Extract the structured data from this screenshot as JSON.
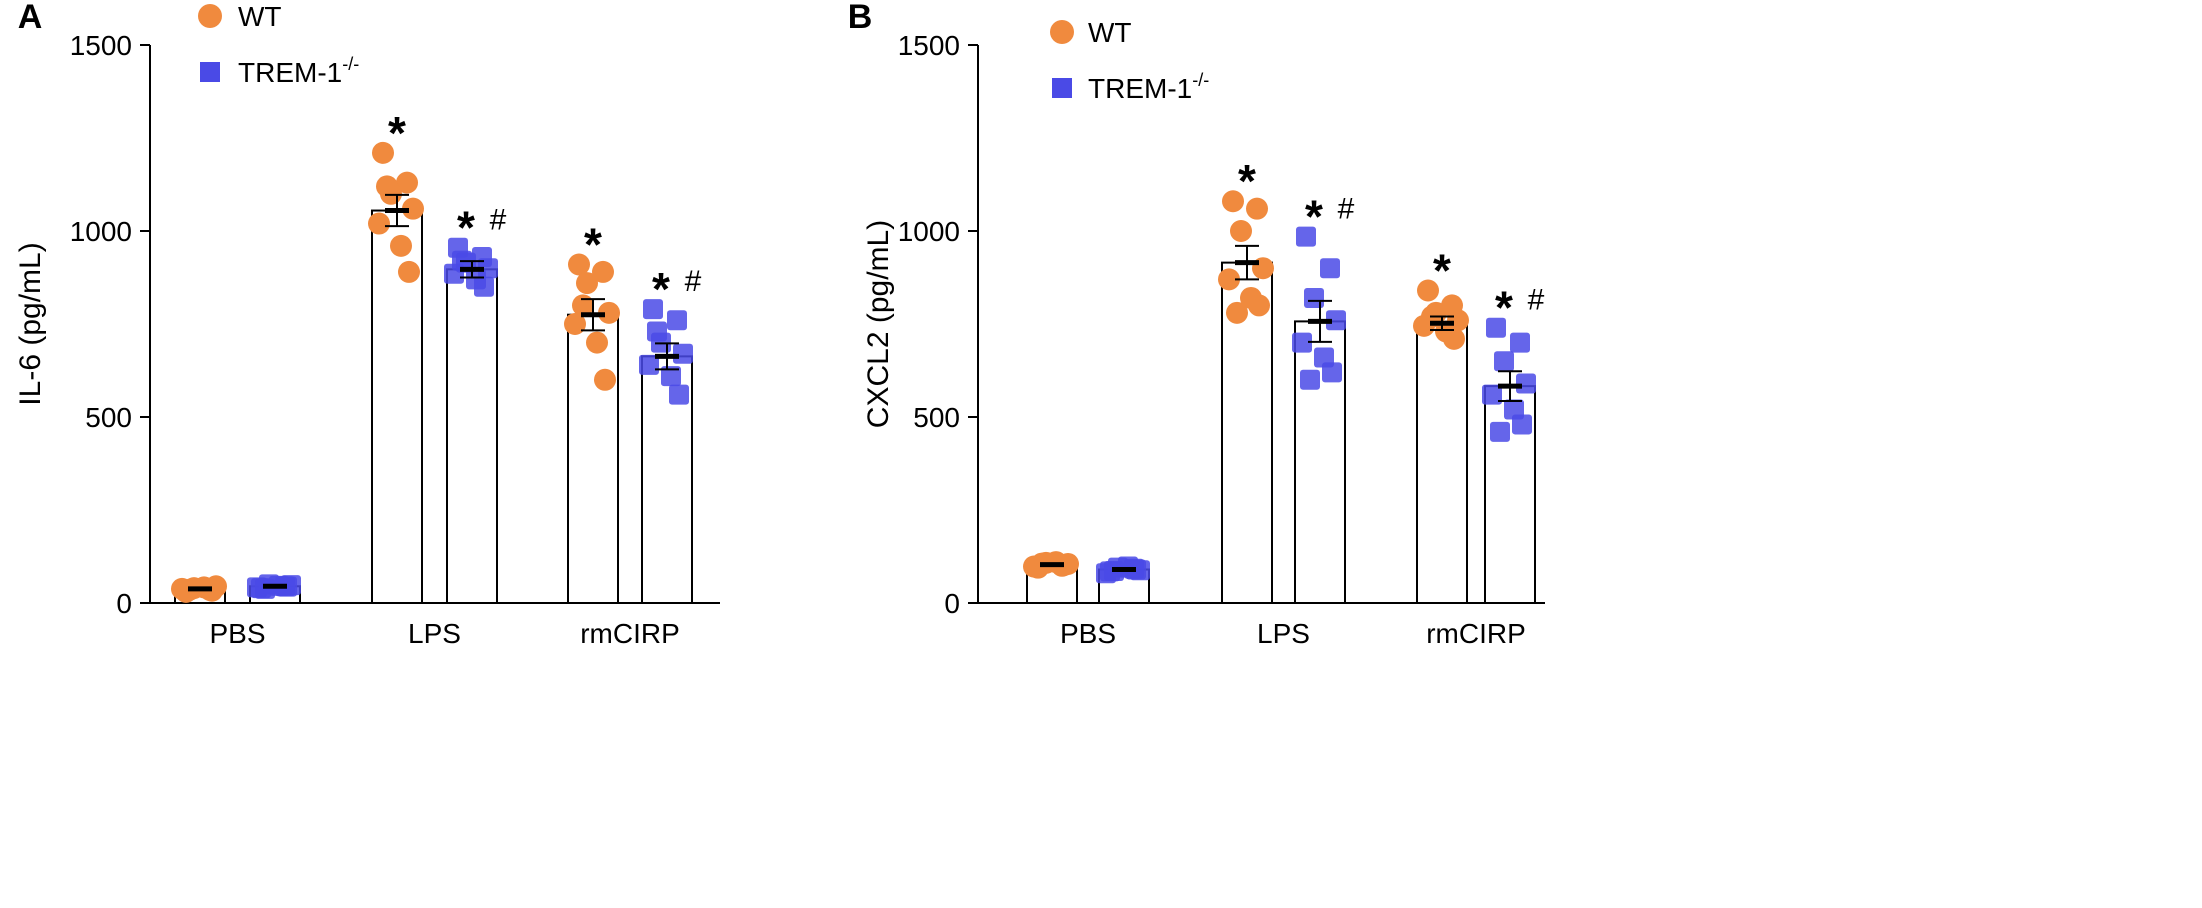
{
  "colors": {
    "wt": "#F08A3E",
    "trem": "#4A4AE6",
    "axis": "#000000"
  },
  "chart_data": [
    {
      "type": "bar",
      "panel_label": "A",
      "ylabel": "IL-6 (pg/mL)",
      "ylim": [
        0,
        1500
      ],
      "yticks": [
        0,
        500,
        1000,
        1500
      ],
      "categories": [
        "PBS",
        "LPS",
        "rmCIRP"
      ],
      "legend": {
        "position": "top-left",
        "entries": [
          {
            "name": "WT",
            "marker": "circle"
          },
          {
            "name": "TREM-1",
            "sup": "-/-",
            "marker": "square"
          }
        ]
      },
      "series": [
        {
          "name": "WT",
          "marker": "circle",
          "values": [
            38,
            1055,
            775
          ],
          "sem": [
            6,
            42,
            42
          ],
          "points": [
            [
              30,
              35,
              40,
              45,
              38,
              42,
              33,
              36
            ],
            [
              1210,
              1130,
              1100,
              1060,
              1020,
              960,
              890,
              1120
            ],
            [
              910,
              890,
              860,
              780,
              750,
              700,
              600,
              800
            ]
          ],
          "annotations": [
            "",
            "*",
            "*"
          ]
        },
        {
          "name": "TREM-1-/-",
          "marker": "square",
          "values": [
            45,
            897,
            663
          ],
          "sem": [
            5,
            22,
            35
          ],
          "points": [
            [
              40,
              45,
              50,
              48,
              42,
              46,
              44,
              38
            ],
            [
              955,
              930,
              915,
              900,
              885,
              870,
              850,
              920
            ],
            [
              790,
              760,
              700,
              670,
              640,
              610,
              560,
              730
            ]
          ],
          "annotations": [
            "",
            "*#",
            "*#"
          ]
        }
      ]
    },
    {
      "type": "bar",
      "panel_label": "B",
      "ylabel": "CXCL2 (pg/mL)",
      "ylim": [
        0,
        1500
      ],
      "yticks": [
        0,
        500,
        1000,
        1500
      ],
      "categories": [
        "PBS",
        "LPS",
        "rmCIRP"
      ],
      "legend": {
        "position": "top-left",
        "entries": [
          {
            "name": "WT",
            "marker": "circle"
          },
          {
            "name": "TREM-1",
            "sup": "-/-",
            "marker": "square"
          }
        ]
      },
      "series": [
        {
          "name": "WT",
          "marker": "circle",
          "values": [
            103,
            915,
            752
          ],
          "sem": [
            3,
            45,
            18
          ],
          "points": [
            [
              95,
              100,
              108,
              105,
              98,
              110,
              102,
              106
            ],
            [
              1080,
              1060,
              1000,
              900,
              870,
              820,
              800,
              780
            ],
            [
              840,
              800,
              780,
              760,
              745,
              730,
              710,
              770
            ]
          ],
          "annotations": [
            "",
            "*",
            "*"
          ]
        },
        {
          "name": "TREM-1-/-",
          "marker": "square",
          "values": [
            90,
            757,
            583
          ],
          "sem": [
            4,
            55,
            40
          ],
          "points": [
            [
              85,
              92,
              95,
              88,
              80,
              98,
              90,
              86
            ],
            [
              985,
              900,
              820,
              760,
              700,
              660,
              620,
              600
            ],
            [
              740,
              700,
              650,
              590,
              560,
              520,
              480,
              460
            ]
          ],
          "annotations": [
            "",
            "*#",
            "*#"
          ]
        }
      ]
    }
  ]
}
